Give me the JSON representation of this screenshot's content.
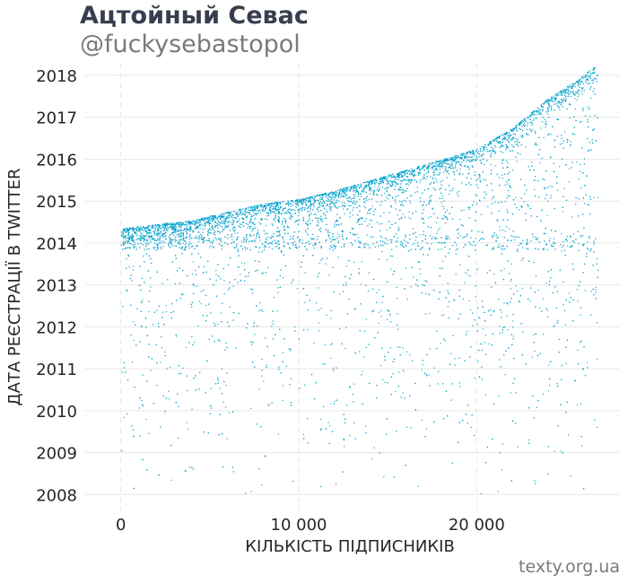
{
  "header": {
    "title": "Ацтойный Севас",
    "subtitle": "@fuckysebastopol"
  },
  "footer": {
    "credit": "texty.org.ua"
  },
  "colors": {
    "points": "#0aa3cc",
    "grid": "#e6e6e6",
    "text": "#262626"
  },
  "chart_data": {
    "type": "scatter",
    "xlabel": "КІЛЬКІСТЬ ПІДПИСНИКІВ",
    "ylabel": "ДАТА РЕЄСТРАЦІЇ В TWITTER",
    "xlim": [
      -2000,
      28000
    ],
    "ylim": [
      2007.6,
      2018.3
    ],
    "x_ticks": [
      {
        "value": 0,
        "label": "0"
      },
      {
        "value": 10000,
        "label": "10 000"
      },
      {
        "value": 20000,
        "label": "20 000"
      }
    ],
    "y_ticks": [
      {
        "value": 2008,
        "label": "2008"
      },
      {
        "value": 2009,
        "label": "2009"
      },
      {
        "value": 2010,
        "label": "2010"
      },
      {
        "value": 2011,
        "label": "2011"
      },
      {
        "value": 2012,
        "label": "2012"
      },
      {
        "value": 2013,
        "label": "2013"
      },
      {
        "value": 2014,
        "label": "2014"
      },
      {
        "value": 2015,
        "label": "2015"
      },
      {
        "value": 2016,
        "label": "2016"
      },
      {
        "value": 2017,
        "label": "2017"
      },
      {
        "value": 2018,
        "label": "2018"
      }
    ],
    "grid": true,
    "legend": "none",
    "series": [
      {
        "description": "approx. 27000 followers; x = follower order index, y = registration date",
        "upper_envelope": {
          "x": [
            0,
            2000,
            4000,
            6000,
            8000,
            10000,
            12000,
            14000,
            16000,
            18000,
            20000,
            22000,
            24000,
            26000,
            26800
          ],
          "y": [
            2014.35,
            2014.45,
            2014.55,
            2014.75,
            2014.95,
            2015.05,
            2015.25,
            2015.5,
            2015.75,
            2016.0,
            2016.25,
            2016.75,
            2017.45,
            2018.0,
            2018.3
          ]
        }
      }
    ]
  }
}
